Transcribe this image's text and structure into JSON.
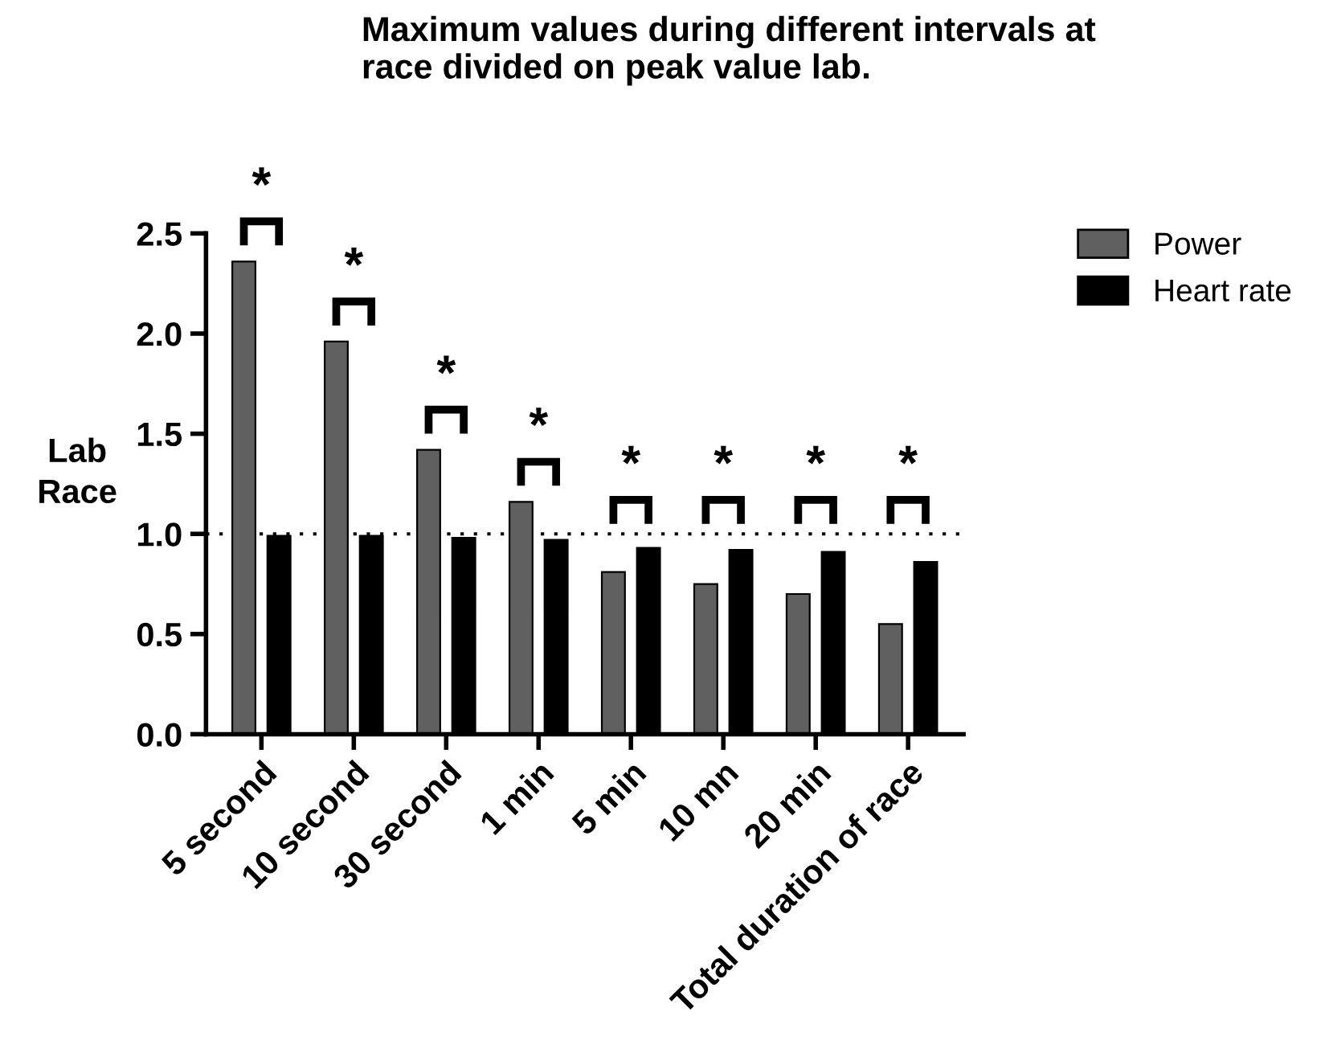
{
  "chart_data": {
    "type": "bar",
    "title": "Maximum values during different intervals at race divided on peak value lab.",
    "ylabel": "Lab\nRace",
    "categories": [
      "5 second",
      "10 second",
      "30 second",
      "1 min",
      "5 min",
      "10 mn",
      "20 min",
      "Total duration of race"
    ],
    "series": [
      {
        "name": "Power",
        "color": "#606060",
        "values": [
          2.36,
          1.96,
          1.42,
          1.16,
          0.81,
          0.75,
          0.7,
          0.55
        ]
      },
      {
        "name": "Heart rate",
        "color": "#000000",
        "values": [
          0.99,
          0.99,
          0.98,
          0.97,
          0.93,
          0.92,
          0.91,
          0.86
        ]
      }
    ],
    "ylim": [
      0,
      2.5
    ],
    "yticks": [
      {
        "value": 0,
        "label": "0.0"
      },
      {
        "value": 0.5,
        "label": "0.5"
      },
      {
        "value": 1,
        "label": "1.0"
      },
      {
        "value": 1.5,
        "label": "1.5"
      },
      {
        "value": 2,
        "label": "2.0"
      },
      {
        "value": 2.5,
        "label": "2.5"
      }
    ],
    "ref_lines": [
      {
        "axis": "y",
        "value": 1,
        "color": "#000000",
        "line_style": "dotted"
      }
    ],
    "annotations": [
      "*",
      "*",
      "*",
      "*",
      "*",
      "*",
      "*",
      "*"
    ],
    "legend": "right",
    "grid": false
  }
}
